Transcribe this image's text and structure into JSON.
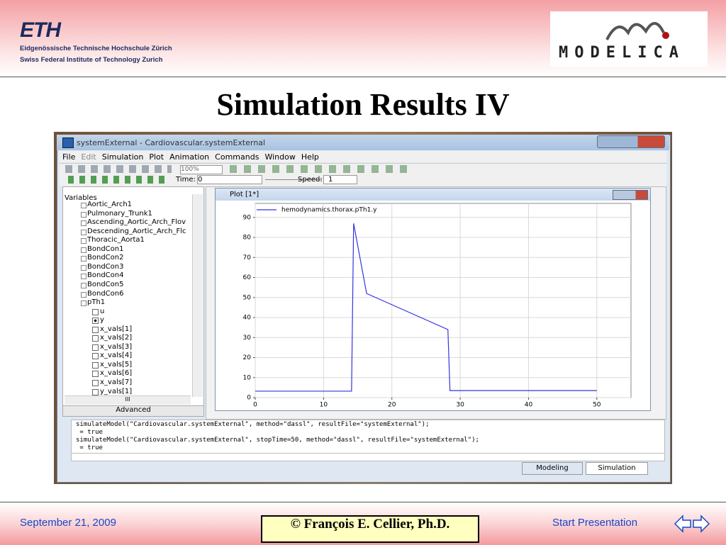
{
  "header": {
    "eth_logo": "ETH",
    "eth_line1": "Eidgenössische Technische Hochschule Zürich",
    "eth_line2": "Swiss Federal Institute of Technology Zurich",
    "modelica_logo": "MODELICA"
  },
  "title": "Simulation Results IV",
  "window": {
    "title": "systemExternal - Cardiovascular.systemExternal",
    "menu": [
      "File",
      "Edit",
      "Simulation",
      "Plot",
      "Animation",
      "Commands",
      "Window",
      "Help"
    ],
    "zoom": "100%",
    "time_label": "Time:",
    "time_value": "0",
    "speed_label": "Speed:",
    "speed_value": "1",
    "variables_label": "Variables",
    "tree": [
      {
        "label": "Aortic_Arch1"
      },
      {
        "label": "Pulmonary_Trunk1"
      },
      {
        "label": "Ascending_Aortic_Arch_Flov"
      },
      {
        "label": "Descending_Aortic_Arch_Flc"
      },
      {
        "label": "Thoracic_Aorta1"
      },
      {
        "label": "BondCon1"
      },
      {
        "label": "BondCon2"
      },
      {
        "label": "BondCon3"
      },
      {
        "label": "BondCon4"
      },
      {
        "label": "BondCon5"
      },
      {
        "label": "BondCon6"
      },
      {
        "label": "pTh1",
        "children": [
          {
            "label": "u",
            "checked": false
          },
          {
            "label": "y",
            "checked": true
          },
          {
            "label": "x_vals[1]",
            "checked": false
          },
          {
            "label": "x_vals[2]",
            "checked": false
          },
          {
            "label": "x_vals[3]",
            "checked": false
          },
          {
            "label": "x_vals[4]",
            "checked": false
          },
          {
            "label": "x_vals[5]",
            "checked": false
          },
          {
            "label": "x_vals[6]",
            "checked": false
          },
          {
            "label": "x_vals[7]",
            "checked": false
          },
          {
            "label": "y_vals[1]",
            "checked": false
          }
        ]
      }
    ],
    "scroll_label": "III",
    "advanced": "Advanced",
    "plot_title": "Plot [1*]",
    "commands": [
      "simulateModel(\"Cardiovascular.systemExternal\", method=\"dassl\", resultFile=\"systemExternal\");",
      " = true",
      "simulateModel(\"Cardiovascular.systemExternal\", stopTime=50, method=\"dassl\", resultFile=\"systemExternal\");",
      " = true"
    ],
    "tabs": [
      "Modeling",
      "Simulation"
    ]
  },
  "chart_data": {
    "type": "line",
    "x": [
      0,
      14.1,
      14.4,
      16.3,
      28.2,
      28.5,
      50
    ],
    "series": [
      {
        "name": "hemodynamics.thorax.pTh1.y",
        "color": "#3434e0",
        "values": [
          3.2,
          3.2,
          87,
          52,
          34,
          3.5,
          3.5
        ]
      }
    ],
    "xlim": [
      0,
      55
    ],
    "ylim": [
      0,
      97
    ],
    "xticks": [
      0,
      10,
      20,
      30,
      40,
      50
    ],
    "yticks": [
      0,
      10,
      20,
      30,
      40,
      50,
      60,
      70,
      80,
      90
    ],
    "grid": true
  },
  "footer": {
    "date": "September 21, 2009",
    "copyright": "© François E. Cellier, Ph.D.",
    "link": "Start Presentation"
  }
}
